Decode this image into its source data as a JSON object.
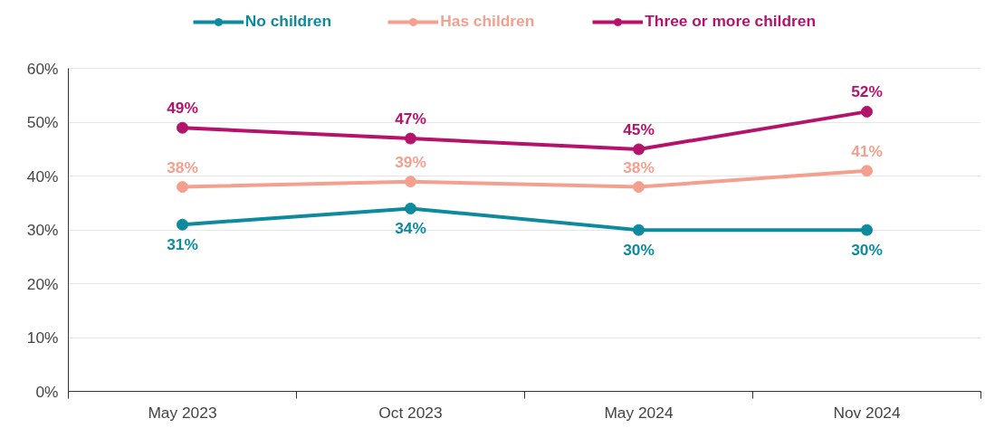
{
  "chart_data": {
    "type": "line",
    "categories": [
      "May 2023",
      "Oct 2023",
      "May 2024",
      "Nov 2024"
    ],
    "ylim": [
      0,
      60
    ],
    "yticks": [
      {
        "value": 0,
        "label": "0%"
      },
      {
        "value": 10,
        "label": "10%"
      },
      {
        "value": 20,
        "label": "20%"
      },
      {
        "value": 30,
        "label": "30%"
      },
      {
        "value": 40,
        "label": "40%"
      },
      {
        "value": 50,
        "label": "50%"
      },
      {
        "value": 60,
        "label": "60%"
      }
    ],
    "grid": "y",
    "legend": "top",
    "marker": "circle",
    "line_style": "solid",
    "series": [
      {
        "name": "No children",
        "color": "#0e8a9e",
        "values": [
          31,
          34,
          30,
          30
        ],
        "value_labels": [
          "31%",
          "34%",
          "30%",
          "30%"
        ]
      },
      {
        "name": "Has children",
        "color": "#f4a08f",
        "values": [
          38,
          39,
          38,
          41
        ],
        "value_labels": [
          "38%",
          "39%",
          "38%",
          "41%"
        ]
      },
      {
        "name": "Three or more children",
        "color": "#b5136b",
        "values": [
          49,
          47,
          45,
          52
        ],
        "value_labels": [
          "49%",
          "47%",
          "45%",
          "52%"
        ]
      }
    ]
  }
}
